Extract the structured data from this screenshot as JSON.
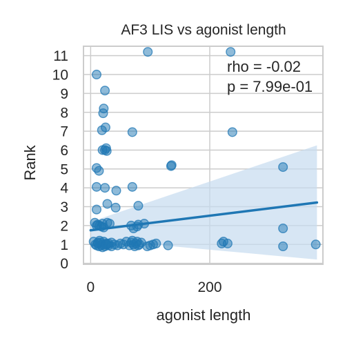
{
  "chart_data": {
    "type": "scatter",
    "title": "AF3 LIS vs agonist length",
    "xlabel": "agonist length",
    "ylabel": "Rank",
    "xlim": [
      -12,
      390
    ],
    "ylim": [
      -0.05,
      11.5
    ],
    "xticks": [
      0,
      200
    ],
    "yticks": [
      0,
      1,
      2,
      3,
      4,
      5,
      6,
      7,
      8,
      9,
      10,
      11
    ],
    "grid": true,
    "annotations": [
      "rho = -0.02",
      "p = 7.99e-01"
    ],
    "colors": {
      "points": "#1f77b4",
      "line": "#1f77b4",
      "band": "#c6dbef",
      "grid": "#cccccc"
    },
    "regression": {
      "x": [
        0,
        380
      ],
      "y": [
        1.75,
        3.22
      ],
      "ci_low": [
        1.3,
        0.2
      ],
      "ci_high": [
        2.2,
        6.25
      ]
    },
    "points": {
      "x": [
        96,
        235,
        10,
        24,
        22,
        21,
        19,
        25,
        70,
        238,
        20,
        24,
        26,
        27,
        136,
        135,
        323,
        10,
        14,
        10,
        24,
        43,
        70,
        10,
        28,
        80,
        42,
        20,
        28,
        32,
        12,
        15,
        18,
        7,
        10,
        22,
        5,
        80,
        90,
        78,
        72,
        68,
        323,
        8,
        10,
        12,
        14,
        16,
        18,
        20,
        22,
        24,
        26,
        28,
        30,
        35,
        40,
        45,
        50,
        55,
        60,
        65,
        68,
        70,
        72,
        74,
        76,
        78,
        80,
        82,
        85,
        95,
        100,
        105,
        110,
        130,
        220,
        230,
        223,
        323,
        378,
        15,
        20,
        25,
        30,
        35,
        12
      ],
      "y": [
        11.2,
        11.2,
        10.0,
        9.15,
        8.2,
        7.95,
        7.05,
        7.2,
        6.95,
        6.95,
        6.0,
        6.0,
        6.1,
        5.95,
        5.2,
        5.15,
        5.1,
        5.05,
        4.9,
        4.05,
        4.0,
        3.85,
        4.05,
        2.85,
        3.15,
        3.05,
        2.95,
        2.1,
        2.15,
        2.1,
        2.05,
        2.0,
        1.95,
        2.15,
        2.0,
        1.9,
        1.15,
        2.05,
        2.1,
        1.95,
        1.85,
        2.0,
        1.85,
        1.0,
        0.95,
        1.05,
        0.9,
        1.1,
        0.95,
        1.0,
        1.15,
        0.9,
        1.05,
        1.0,
        0.95,
        1.1,
        1.0,
        0.95,
        1.05,
        1.0,
        1.15,
        0.95,
        1.1,
        1.2,
        1.0,
        0.9,
        1.05,
        1.15,
        0.95,
        1.0,
        1.1,
        0.9,
        0.95,
        1.0,
        1.05,
        0.95,
        1.05,
        1.05,
        1.15,
        0.9,
        1.0,
        1.2,
        0.85,
        1.0,
        1.05,
        0.9,
        1.1
      ]
    }
  }
}
